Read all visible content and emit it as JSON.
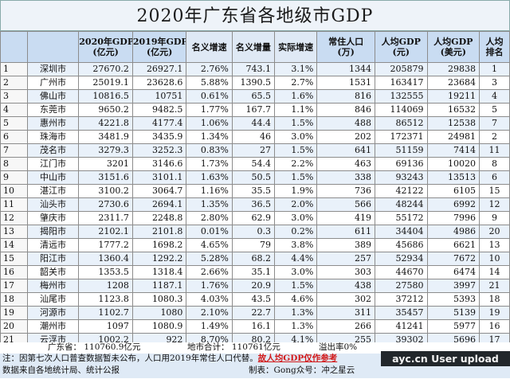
{
  "title": "2020年广东省各地级市GDP",
  "headers": [
    "",
    "",
    "2020年GDP\n(亿元)",
    "2019年GDP\n(亿元)",
    "名义增速",
    "名义增量",
    "实际增速",
    "常住人口\n(万)",
    "人均GDP\n(元)",
    "人均GDP\n(美元)",
    "人均\n排名"
  ],
  "rows": [
    [
      "1",
      "深圳市",
      "27670.2",
      "26927.1",
      "2.76%",
      "743.1",
      "3.1%",
      "1344",
      "205879",
      "29838",
      "1"
    ],
    [
      "2",
      "广州市",
      "25019.1",
      "23628.6",
      "5.88%",
      "1390.5",
      "2.7%",
      "1531",
      "163417",
      "23684",
      "3"
    ],
    [
      "3",
      "佛山市",
      "10816.5",
      "10751",
      "0.61%",
      "65.5",
      "1.6%",
      "816",
      "132555",
      "19211",
      "4"
    ],
    [
      "4",
      "东莞市",
      "9650.2",
      "9482.5",
      "1.77%",
      "167.7",
      "1.1%",
      "846",
      "114069",
      "16532",
      "5"
    ],
    [
      "5",
      "惠州市",
      "4221.8",
      "4177.4",
      "1.06%",
      "44.4",
      "1.5%",
      "488",
      "86512",
      "12538",
      "7"
    ],
    [
      "6",
      "珠海市",
      "3481.9",
      "3435.9",
      "1.34%",
      "46",
      "3.0%",
      "202",
      "172371",
      "24981",
      "2"
    ],
    [
      "7",
      "茂名市",
      "3279.3",
      "3252.3",
      "0.83%",
      "27",
      "1.5%",
      "641",
      "51159",
      "7414",
      "11"
    ],
    [
      "8",
      "江门市",
      "3201",
      "3146.6",
      "1.73%",
      "54.4",
      "2.2%",
      "463",
      "69136",
      "10020",
      "8"
    ],
    [
      "9",
      "中山市",
      "3151.6",
      "3101.1",
      "1.63%",
      "50.5",
      "1.5%",
      "338",
      "93243",
      "13513",
      "6"
    ],
    [
      "10",
      "湛江市",
      "3100.2",
      "3064.7",
      "1.16%",
      "35.5",
      "1.9%",
      "736",
      "42122",
      "6105",
      "15"
    ],
    [
      "11",
      "汕头市",
      "2730.6",
      "2694.1",
      "1.35%",
      "36.5",
      "2.0%",
      "566",
      "48244",
      "6992",
      "12"
    ],
    [
      "12",
      "肇庆市",
      "2311.7",
      "2248.8",
      "2.80%",
      "62.9",
      "3.0%",
      "419",
      "55172",
      "7996",
      "9"
    ],
    [
      "13",
      "揭阳市",
      "2102.1",
      "2101.8",
      "0.01%",
      "0.3",
      "0.2%",
      "611",
      "34404",
      "4986",
      "20"
    ],
    [
      "14",
      "清远市",
      "1777.2",
      "1698.2",
      "4.65%",
      "79",
      "3.8%",
      "389",
      "45686",
      "6621",
      "13"
    ],
    [
      "15",
      "阳江市",
      "1360.4",
      "1292.2",
      "5.28%",
      "68.2",
      "4.4%",
      "257",
      "52934",
      "7672",
      "10"
    ],
    [
      "16",
      "韶关市",
      "1353.5",
      "1318.4",
      "2.66%",
      "35.1",
      "3.0%",
      "303",
      "44670",
      "6474",
      "14"
    ],
    [
      "17",
      "梅州市",
      "1208",
      "1187.1",
      "1.76%",
      "20.9",
      "1.5%",
      "438",
      "27580",
      "3997",
      "21"
    ],
    [
      "18",
      "汕尾市",
      "1123.8",
      "1080.3",
      "4.03%",
      "43.5",
      "4.6%",
      "302",
      "37212",
      "5393",
      "18"
    ],
    [
      "19",
      "河源市",
      "1102.7",
      "1080",
      "2.10%",
      "22.7",
      "1.3%",
      "311",
      "35457",
      "5139",
      "19"
    ],
    [
      "20",
      "潮州市",
      "1097",
      "1080.9",
      "1.49%",
      "16.1",
      "1.3%",
      "266",
      "41241",
      "5977",
      "16"
    ],
    [
      "21",
      "云浮市",
      "1002.2",
      "922",
      "8.70%",
      "80.2",
      "4.1%",
      "255",
      "39302",
      "5696",
      "17"
    ]
  ],
  "footer": {
    "province_total": "广东省： 110760.9亿元",
    "city_total": "地市合计： 110761亿元",
    "overflow": "溢出率0%",
    "note_prefix": "注：因第七次人口普查数据暂未公布，人口用2019年常住人口代替。",
    "note_red": "故人均GDP仅作参考",
    "source": "数据来自各地统计局、统计公报",
    "maker": "制表：Gong众号：冲之星云",
    "watermark": "ayc.cn User upload"
  }
}
